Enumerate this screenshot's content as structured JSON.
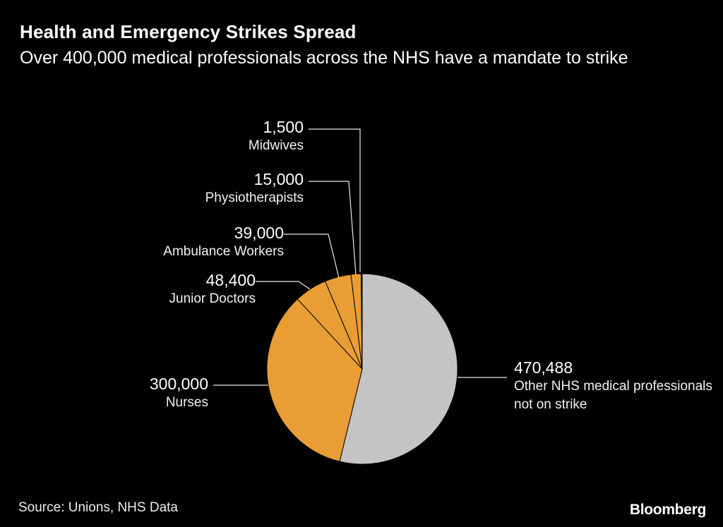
{
  "chart_data": {
    "type": "pie",
    "title": "Health and Emergency Strikes Spread",
    "subtitle": "Over 400,000 medical professionals across the NHS have a mandate to strike",
    "source": "Source: Unions, NHS Data",
    "legend_position": "callouts",
    "direction": "clockwise",
    "start_angle_deg": 0,
    "slices": [
      {
        "label": "Other NHS medical professionals not on strike",
        "label_lines": [
          "Other NHS medical professionals",
          "not on strike"
        ],
        "value": 470488,
        "display_value": "470,488",
        "color": "#c4c4c4"
      },
      {
        "label": "Nurses",
        "value": 300000,
        "display_value": "300,000",
        "color": "#e89e35"
      },
      {
        "label": "Junior Doctors",
        "value": 48400,
        "display_value": "48,400",
        "color": "#e89e35"
      },
      {
        "label": "Ambulance Workers",
        "value": 39000,
        "display_value": "39,000",
        "color": "#e89e35"
      },
      {
        "label": "Physiotherapists",
        "value": 15000,
        "display_value": "15,000",
        "color": "#e89e35"
      },
      {
        "label": "Midwives",
        "value": 1500,
        "display_value": "1,500",
        "color": "#1b1b1b"
      }
    ]
  },
  "footer": {
    "source": "Source: Unions, NHS Data",
    "brand": "Bloomberg"
  },
  "colors": {
    "background": "#000000",
    "text": "#ffffff",
    "slice_orange": "#e89e35",
    "slice_gray": "#c4c4c4",
    "slice_dark": "#1b1b1b",
    "leader_line": "#e8e8e8"
  }
}
